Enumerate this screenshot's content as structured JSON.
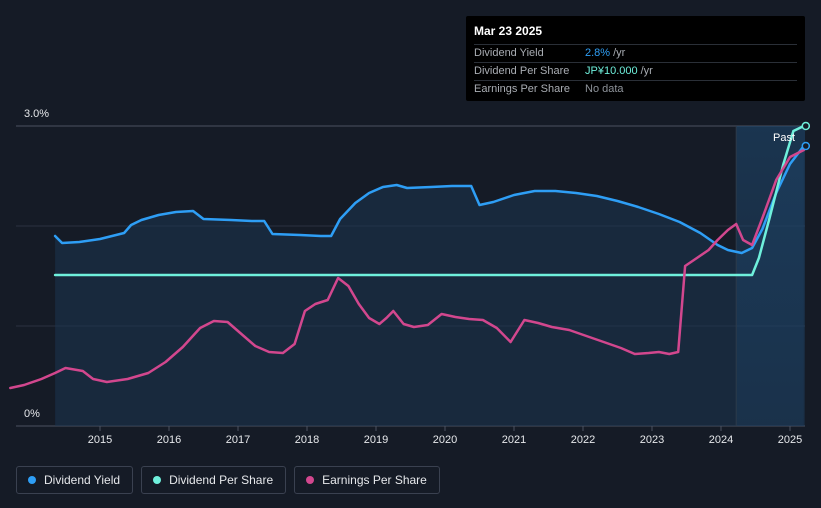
{
  "tooltip": {
    "date": "Mar 23 2025",
    "rows": [
      {
        "label": "Dividend Yield",
        "value": "2.8%",
        "unit": "/yr",
        "color": "#2e9ef5"
      },
      {
        "label": "Dividend Per Share",
        "value": "JP¥10.000",
        "unit": "/yr",
        "color": "#6ff0dc"
      },
      {
        "label": "Earnings Per Share",
        "value": "No data",
        "unit": "",
        "color": "#8e939a"
      }
    ]
  },
  "past_label": "Past",
  "legend": [
    {
      "label": "Dividend Yield",
      "color": "#2e9ef5"
    },
    {
      "label": "Dividend Per Share",
      "color": "#6ff0dc"
    },
    {
      "label": "Earnings Per Share",
      "color": "#d2478e"
    }
  ],
  "chart_data": {
    "type": "line",
    "y_tick_labels": [
      "3.0%",
      "0%"
    ],
    "ylim": [
      0,
      3.0
    ],
    "xlim": [
      2014.0,
      2025.25
    ],
    "x_ticks": [
      2015,
      2016,
      2017,
      2018,
      2019,
      2020,
      2021,
      2022,
      2023,
      2024,
      2025
    ],
    "grid": true,
    "legend_position": "bottom-left",
    "forecast_start": 2024.22,
    "series": [
      {
        "name": "Dividend Yield",
        "color": "#2e9ef5",
        "points": [
          [
            2014.35,
            1.9
          ],
          [
            2014.45,
            1.83
          ],
          [
            2014.7,
            1.84
          ],
          [
            2015.0,
            1.87
          ],
          [
            2015.35,
            1.93
          ],
          [
            2015.45,
            2.01
          ],
          [
            2015.6,
            2.06
          ],
          [
            2015.85,
            2.11
          ],
          [
            2016.1,
            2.14
          ],
          [
            2016.35,
            2.15
          ],
          [
            2016.5,
            2.07
          ],
          [
            2016.9,
            2.06
          ],
          [
            2017.2,
            2.05
          ],
          [
            2017.38,
            2.05
          ],
          [
            2017.5,
            1.92
          ],
          [
            2017.9,
            1.91
          ],
          [
            2018.2,
            1.9
          ],
          [
            2018.35,
            1.9
          ],
          [
            2018.48,
            2.07
          ],
          [
            2018.7,
            2.23
          ],
          [
            2018.9,
            2.33
          ],
          [
            2019.1,
            2.39
          ],
          [
            2019.3,
            2.41
          ],
          [
            2019.45,
            2.38
          ],
          [
            2019.8,
            2.39
          ],
          [
            2020.1,
            2.4
          ],
          [
            2020.38,
            2.4
          ],
          [
            2020.5,
            2.21
          ],
          [
            2020.7,
            2.24
          ],
          [
            2021.0,
            2.31
          ],
          [
            2021.3,
            2.35
          ],
          [
            2021.6,
            2.35
          ],
          [
            2021.9,
            2.33
          ],
          [
            2022.2,
            2.3
          ],
          [
            2022.5,
            2.25
          ],
          [
            2022.8,
            2.19
          ],
          [
            2023.1,
            2.12
          ],
          [
            2023.4,
            2.04
          ],
          [
            2023.7,
            1.93
          ],
          [
            2023.95,
            1.81
          ],
          [
            2024.1,
            1.76
          ],
          [
            2024.3,
            1.73
          ],
          [
            2024.45,
            1.78
          ],
          [
            2024.6,
            1.97
          ],
          [
            2024.8,
            2.33
          ],
          [
            2025.0,
            2.62
          ],
          [
            2025.2,
            2.8
          ]
        ]
      },
      {
        "name": "Dividend Per Share",
        "color": "#6ff0dc",
        "points": [
          [
            2014.35,
            1.51
          ],
          [
            2024.45,
            1.51
          ],
          [
            2024.55,
            1.68
          ],
          [
            2024.7,
            2.07
          ],
          [
            2024.9,
            2.61
          ],
          [
            2025.05,
            2.95
          ],
          [
            2025.2,
            3.0
          ]
        ]
      },
      {
        "name": "Earnings Per Share",
        "color": "#d2478e",
        "points": [
          [
            2013.7,
            0.38
          ],
          [
            2013.9,
            0.41
          ],
          [
            2014.15,
            0.47
          ],
          [
            2014.35,
            0.53
          ],
          [
            2014.5,
            0.58
          ],
          [
            2014.75,
            0.55
          ],
          [
            2014.9,
            0.47
          ],
          [
            2015.1,
            0.44
          ],
          [
            2015.4,
            0.47
          ],
          [
            2015.7,
            0.53
          ],
          [
            2015.95,
            0.64
          ],
          [
            2016.2,
            0.79
          ],
          [
            2016.45,
            0.98
          ],
          [
            2016.65,
            1.05
          ],
          [
            2016.85,
            1.04
          ],
          [
            2017.05,
            0.92
          ],
          [
            2017.25,
            0.8
          ],
          [
            2017.45,
            0.74
          ],
          [
            2017.65,
            0.73
          ],
          [
            2017.82,
            0.82
          ],
          [
            2017.97,
            1.15
          ],
          [
            2018.12,
            1.22
          ],
          [
            2018.3,
            1.26
          ],
          [
            2018.45,
            1.48
          ],
          [
            2018.6,
            1.4
          ],
          [
            2018.75,
            1.22
          ],
          [
            2018.9,
            1.08
          ],
          [
            2019.05,
            1.02
          ],
          [
            2019.15,
            1.08
          ],
          [
            2019.25,
            1.15
          ],
          [
            2019.4,
            1.02
          ],
          [
            2019.55,
            0.99
          ],
          [
            2019.75,
            1.01
          ],
          [
            2019.95,
            1.12
          ],
          [
            2020.15,
            1.09
          ],
          [
            2020.35,
            1.07
          ],
          [
            2020.55,
            1.06
          ],
          [
            2020.75,
            0.98
          ],
          [
            2020.95,
            0.84
          ],
          [
            2021.15,
            1.06
          ],
          [
            2021.35,
            1.03
          ],
          [
            2021.55,
            0.99
          ],
          [
            2021.8,
            0.96
          ],
          [
            2022.05,
            0.9
          ],
          [
            2022.3,
            0.84
          ],
          [
            2022.55,
            0.78
          ],
          [
            2022.75,
            0.72
          ],
          [
            2022.95,
            0.73
          ],
          [
            2023.1,
            0.74
          ],
          [
            2023.25,
            0.72
          ],
          [
            2023.38,
            0.74
          ],
          [
            2023.48,
            1.6
          ],
          [
            2023.65,
            1.68
          ],
          [
            2023.82,
            1.76
          ],
          [
            2023.95,
            1.86
          ],
          [
            2024.1,
            1.96
          ],
          [
            2024.22,
            2.02
          ],
          [
            2024.32,
            1.86
          ],
          [
            2024.45,
            1.81
          ],
          [
            2024.6,
            2.08
          ],
          [
            2024.8,
            2.46
          ],
          [
            2025.0,
            2.69
          ],
          [
            2025.2,
            2.76
          ]
        ]
      }
    ],
    "fill_series": "Dividend Yield"
  }
}
